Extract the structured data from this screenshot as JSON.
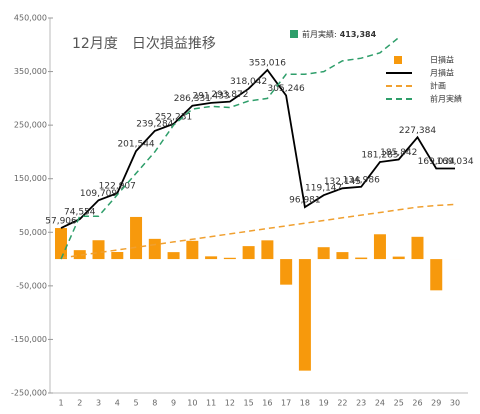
{
  "chart_data": {
    "type": "bar",
    "title": "12月度　日次損益推移",
    "categories": [
      "1",
      "2",
      "3",
      "4",
      "5",
      "8",
      "9",
      "10",
      "11",
      "12",
      "15",
      "16",
      "17",
      "18",
      "19",
      "22",
      "23",
      "24",
      "25",
      "26",
      "29",
      "30"
    ],
    "series": [
      {
        "name": "日損益",
        "type": "bar",
        "color": "#f7990c",
        "values": [
          57906,
          16648,
          35155,
          13198,
          78637,
          37740,
          12947,
          34100,
          5100,
          2400,
          24170,
          34974,
          -47770,
          -208265,
          22166,
          13000,
          2800,
          46300,
          4600,
          41542,
          -58350,
          0
        ]
      },
      {
        "name": "月損益",
        "type": "line",
        "color": "#000000",
        "dash": false,
        "values": [
          57906,
          74554,
          109709,
          122907,
          201544,
          239284,
          252231,
          286331,
          291433,
          293872,
          318042,
          353016,
          305246,
          96981,
          119147,
          132145,
          134986,
          181285,
          185842,
          227384,
          169034,
          169034
        ],
        "value_labels": [
          "57,906",
          "74,554",
          "109,709",
          "122,907",
          "201,544",
          "239,284",
          "252,231",
          "286,331",
          "291,433",
          "293,872",
          "318,042",
          "353,016",
          "305,246",
          "96,981",
          "119,147",
          "132,145",
          "134,986",
          "181,285",
          "185,842",
          "227,384",
          "169,034",
          "169,034"
        ]
      },
      {
        "name": "計画",
        "type": "line",
        "color": "#f0a030",
        "dash": true,
        "values": [
          2000,
          7000,
          12000,
          17000,
          22000,
          27000,
          32000,
          37000,
          42000,
          47000,
          52000,
          57000,
          62000,
          67000,
          72000,
          77000,
          82000,
          87000,
          92000,
          97000,
          100000,
          102000
        ]
      },
      {
        "name": "前月実績",
        "type": "line",
        "color": "#2e9e6a",
        "dash": true,
        "values": [
          0,
          80000,
          80000,
          120000,
          160000,
          200000,
          250000,
          280000,
          285000,
          283000,
          295000,
          300000,
          345000,
          345000,
          350000,
          370000,
          375000,
          385000,
          413384,
          null,
          null,
          null
        ]
      }
    ],
    "annotation": {
      "label": "前月実績:",
      "value": {
        "value": 413384,
        "label": "413,384"
      },
      "color": "#2e9e6a"
    },
    "ylim": [
      -250000,
      450000
    ],
    "yticks": [
      {
        "value": -250000,
        "label": "-250,000"
      },
      {
        "value": -150000,
        "label": "-150,000"
      },
      {
        "value": -50000,
        "label": "-50,000"
      },
      {
        "value": 50000,
        "label": "50,000"
      },
      {
        "value": 150000,
        "label": "150,000"
      },
      {
        "value": 250000,
        "label": "250,000"
      },
      {
        "value": 350000,
        "label": "350,000"
      },
      {
        "value": 450000,
        "label": "450,000"
      }
    ],
    "legend": "top-right"
  }
}
